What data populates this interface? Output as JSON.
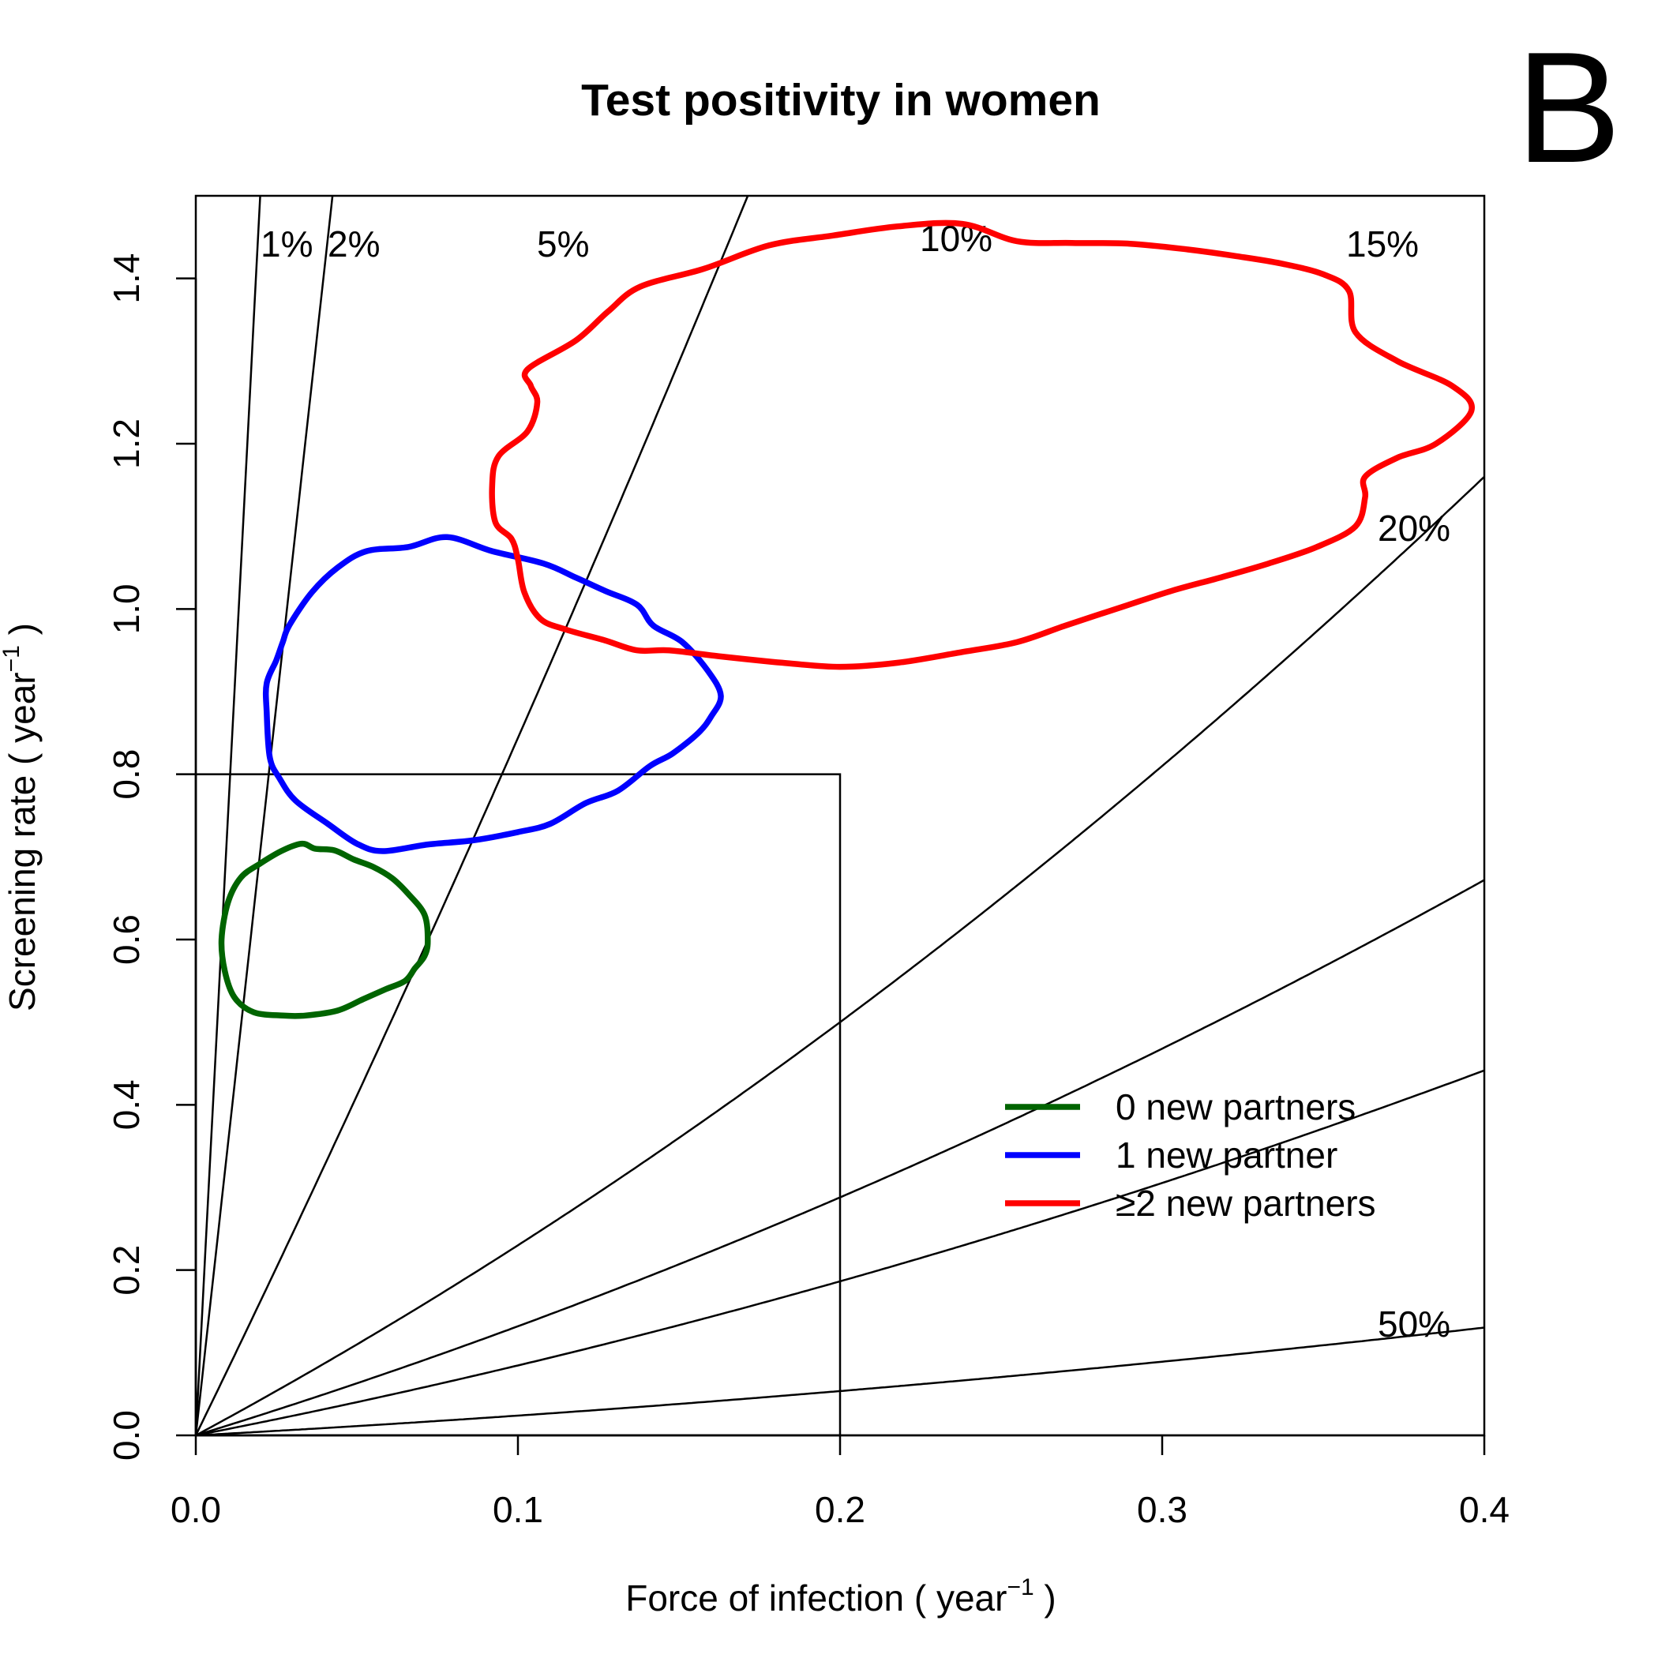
{
  "chart_data": {
    "type": "line",
    "title": "Test positivity in women",
    "panel_letter": "B",
    "xlabel": "Force of infection ( year",
    "xlabel_sup": "−1",
    "xlabel_end": " )",
    "ylabel": "Screening rate ( year",
    "ylabel_sup": "−1",
    "ylabel_end": " )",
    "xlim": [
      0,
      0.4
    ],
    "ylim": [
      0,
      1.5
    ],
    "x_ticks": [
      0.0,
      0.1,
      0.2,
      0.3,
      0.4
    ],
    "x_tick_labels": [
      "0.0",
      "0.1",
      "0.2",
      "0.3",
      "0.4"
    ],
    "y_ticks": [
      0.0,
      0.2,
      0.4,
      0.6,
      0.8,
      1.0,
      1.2,
      1.4
    ],
    "y_tick_labels": [
      "0.0",
      "0.2",
      "0.4",
      "0.6",
      "0.8",
      "1.0",
      "1.2",
      "1.4"
    ],
    "grid": false,
    "legend_position": "bottom-right",
    "reference_box": {
      "x": [
        0,
        0.2
      ],
      "y": [
        0,
        0.8
      ]
    },
    "iso_positivity_lines": [
      {
        "label": "1%",
        "slope": 75.0,
        "curvature": 2.0
      },
      {
        "label": "2%",
        "slope": 35.3,
        "curvature": 1.2
      },
      {
        "label": "5%",
        "slope": 8.0,
        "curvature": 4.4
      },
      {
        "label": "10%",
        "slope": 2.1,
        "curvature": 2.0
      },
      {
        "label": "15%",
        "slope": 1.2,
        "curvature": 1.2
      },
      {
        "label": "20%",
        "slope": 0.76,
        "curvature": 0.86
      },
      {
        "label": "50%",
        "slope": 0.21,
        "curvature": 0.29
      }
    ],
    "series": [
      {
        "name": "0 new partners",
        "color": "#006400",
        "points": [
          [
            0.02,
            0.692
          ],
          [
            0.027,
            0.708
          ],
          [
            0.033,
            0.716
          ],
          [
            0.037,
            0.71
          ],
          [
            0.043,
            0.708
          ],
          [
            0.049,
            0.697
          ],
          [
            0.055,
            0.688
          ],
          [
            0.061,
            0.674
          ],
          [
            0.066,
            0.655
          ],
          [
            0.071,
            0.63
          ],
          [
            0.072,
            0.598
          ],
          [
            0.071,
            0.58
          ],
          [
            0.068,
            0.565
          ],
          [
            0.065,
            0.55
          ],
          [
            0.059,
            0.54
          ],
          [
            0.052,
            0.528
          ],
          [
            0.044,
            0.514
          ],
          [
            0.034,
            0.508
          ],
          [
            0.027,
            0.508
          ],
          [
            0.018,
            0.512
          ],
          [
            0.012,
            0.53
          ],
          [
            0.009,
            0.562
          ],
          [
            0.008,
            0.6
          ],
          [
            0.01,
            0.645
          ],
          [
            0.014,
            0.675
          ]
        ]
      },
      {
        "name": "1 new partner",
        "color": "#0000ff",
        "points": [
          [
            0.029,
            0.98
          ],
          [
            0.036,
            1.02
          ],
          [
            0.044,
            1.05
          ],
          [
            0.053,
            1.07
          ],
          [
            0.066,
            1.075
          ],
          [
            0.078,
            1.087
          ],
          [
            0.092,
            1.07
          ],
          [
            0.108,
            1.055
          ],
          [
            0.118,
            1.038
          ],
          [
            0.127,
            1.022
          ],
          [
            0.137,
            1.005
          ],
          [
            0.142,
            0.98
          ],
          [
            0.151,
            0.96
          ],
          [
            0.159,
            0.925
          ],
          [
            0.163,
            0.895
          ],
          [
            0.16,
            0.87
          ],
          [
            0.156,
            0.85
          ],
          [
            0.148,
            0.825
          ],
          [
            0.141,
            0.81
          ],
          [
            0.131,
            0.78
          ],
          [
            0.121,
            0.765
          ],
          [
            0.11,
            0.74
          ],
          [
            0.1,
            0.73
          ],
          [
            0.086,
            0.72
          ],
          [
            0.072,
            0.715
          ],
          [
            0.058,
            0.707
          ],
          [
            0.05,
            0.716
          ],
          [
            0.041,
            0.74
          ],
          [
            0.031,
            0.768
          ],
          [
            0.026,
            0.795
          ],
          [
            0.023,
            0.82
          ],
          [
            0.022,
            0.875
          ],
          [
            0.022,
            0.91
          ],
          [
            0.025,
            0.938
          ],
          [
            0.027,
            0.96
          ]
        ]
      },
      {
        "name": "≥2 new partners",
        "color": "#ff0000",
        "points": [
          [
            0.103,
            1.29
          ],
          [
            0.118,
            1.325
          ],
          [
            0.128,
            1.36
          ],
          [
            0.138,
            1.39
          ],
          [
            0.158,
            1.412
          ],
          [
            0.178,
            1.44
          ],
          [
            0.198,
            1.452
          ],
          [
            0.218,
            1.463
          ],
          [
            0.238,
            1.466
          ],
          [
            0.255,
            1.445
          ],
          [
            0.272,
            1.443
          ],
          [
            0.29,
            1.442
          ],
          [
            0.308,
            1.435
          ],
          [
            0.323,
            1.427
          ],
          [
            0.337,
            1.418
          ],
          [
            0.35,
            1.405
          ],
          [
            0.358,
            1.385
          ],
          [
            0.36,
            1.335
          ],
          [
            0.373,
            1.3
          ],
          [
            0.39,
            1.27
          ],
          [
            0.396,
            1.24
          ],
          [
            0.385,
            1.2
          ],
          [
            0.373,
            1.183
          ],
          [
            0.363,
            1.16
          ],
          [
            0.363,
            1.135
          ],
          [
            0.36,
            1.1
          ],
          [
            0.348,
            1.075
          ],
          [
            0.333,
            1.055
          ],
          [
            0.318,
            1.038
          ],
          [
            0.303,
            1.022
          ],
          [
            0.288,
            1.003
          ],
          [
            0.27,
            0.98
          ],
          [
            0.255,
            0.96
          ],
          [
            0.238,
            0.948
          ],
          [
            0.218,
            0.935
          ],
          [
            0.2,
            0.93
          ],
          [
            0.182,
            0.935
          ],
          [
            0.162,
            0.943
          ],
          [
            0.147,
            0.95
          ],
          [
            0.137,
            0.95
          ],
          [
            0.127,
            0.962
          ],
          [
            0.115,
            0.975
          ],
          [
            0.107,
            0.988
          ],
          [
            0.102,
            1.02
          ],
          [
            0.1,
            1.06
          ],
          [
            0.098,
            1.085
          ],
          [
            0.093,
            1.105
          ],
          [
            0.092,
            1.15
          ],
          [
            0.094,
            1.185
          ],
          [
            0.103,
            1.215
          ],
          [
            0.106,
            1.25
          ],
          [
            0.104,
            1.27
          ]
        ]
      }
    ]
  }
}
